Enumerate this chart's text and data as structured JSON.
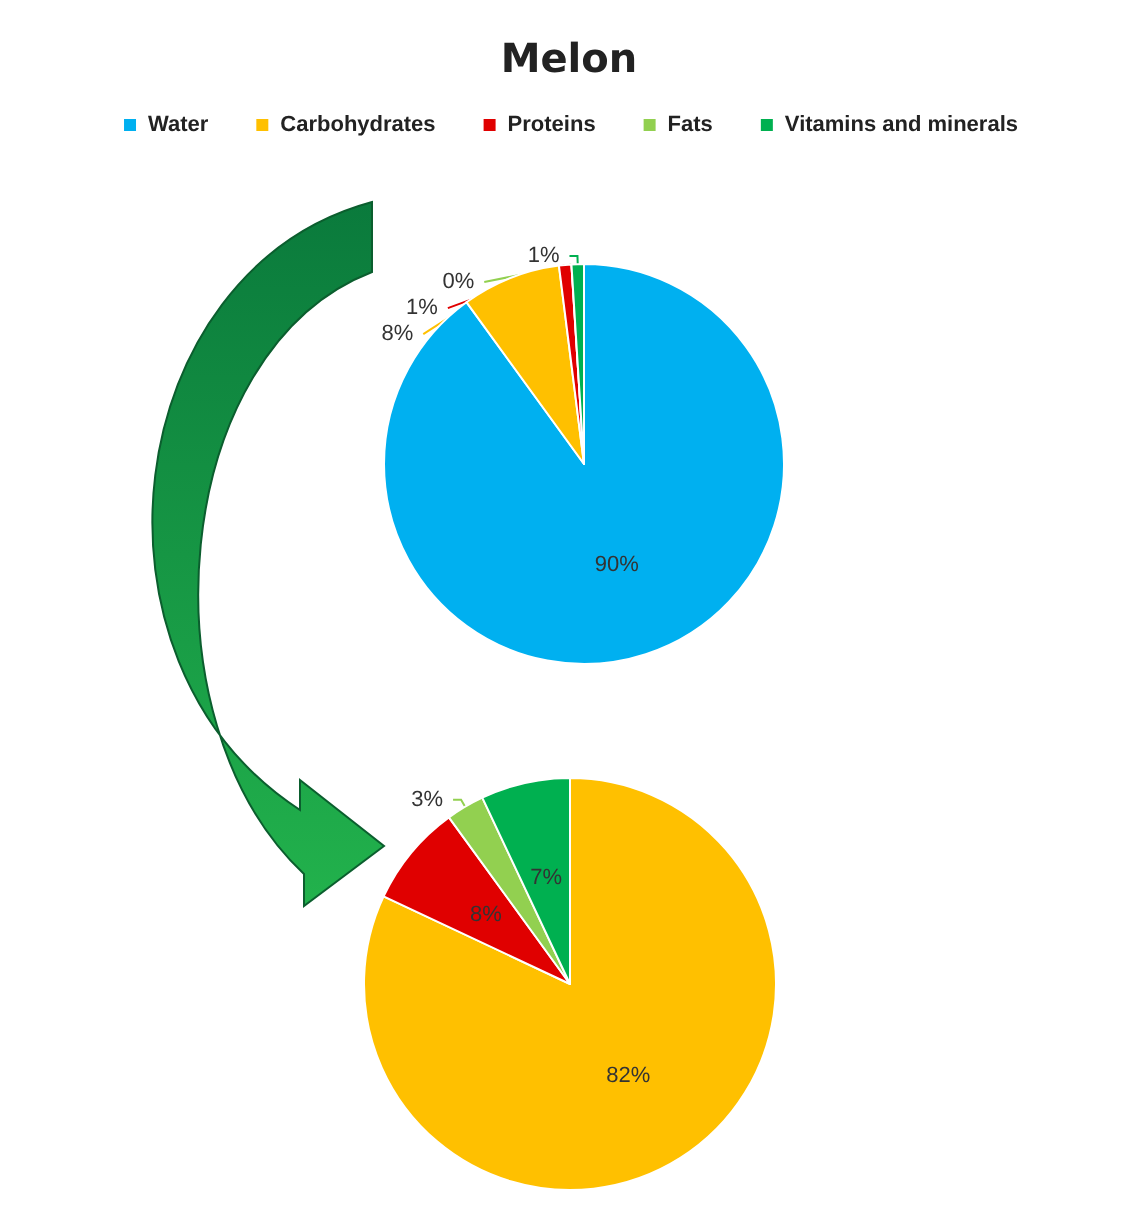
{
  "chart_data": [
    {
      "type": "pie",
      "title": "Melon",
      "categories": [
        "Water",
        "Carbohydrates",
        "Proteins",
        "Fats",
        "Vitamins and minerals"
      ],
      "values": [
        90,
        8,
        1,
        0,
        1
      ],
      "value_labels": [
        "90%",
        "8%",
        "1%",
        "0%",
        "1%"
      ],
      "colors": [
        "#00b0f0",
        "#ffc000",
        "#e00000",
        "#92d050",
        "#00b050"
      ],
      "legend": "top"
    },
    {
      "type": "pie",
      "categories": [
        null,
        null,
        null,
        null
      ],
      "values": [
        82,
        8,
        3,
        7
      ],
      "value_labels": [
        "82%",
        "8%",
        "3%",
        "7%"
      ],
      "colors": [
        "#ffc000",
        "#e00000",
        "#92d050",
        "#00b050"
      ]
    }
  ]
}
